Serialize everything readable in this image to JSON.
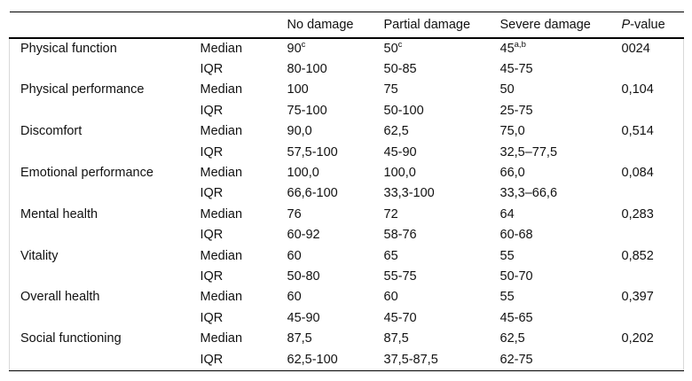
{
  "table": {
    "headers": {
      "label": "",
      "stat": "",
      "no_damage": "No damage",
      "partial_damage": "Partial damage",
      "severe_damage": "Severe damage",
      "p_value": "P-value"
    },
    "stat_labels": {
      "median": "Median",
      "iqr": "IQR"
    },
    "rows": [
      {
        "label": "Physical function",
        "median": {
          "no": "90",
          "no_sup": "c",
          "partial": "50",
          "partial_sup": "c",
          "severe": "45",
          "severe_sup": "a,b",
          "p": "0024"
        },
        "iqr": {
          "no": "80-100",
          "partial": "50-85",
          "severe": "45-75"
        }
      },
      {
        "label": "Physical performance",
        "median": {
          "no": "100",
          "partial": "75",
          "severe": "50",
          "p": "0,104"
        },
        "iqr": {
          "no": "75-100",
          "partial": "50-100",
          "severe": "25-75"
        }
      },
      {
        "label": "Discomfort",
        "median": {
          "no": "90,0",
          "partial": "62,5",
          "severe": "75,0",
          "p": "0,514"
        },
        "iqr": {
          "no": "57,5-100",
          "partial": "45-90",
          "severe": "32,5–77,5"
        }
      },
      {
        "label": "Emotional performance",
        "median": {
          "no": "100,0",
          "partial": "100,0",
          "severe": "66,0",
          "p": "0,084"
        },
        "iqr": {
          "no": "66,6-100",
          "partial": "33,3-100",
          "severe": "33,3–66,6"
        }
      },
      {
        "label": "Mental health",
        "median": {
          "no": "76",
          "partial": "72",
          "severe": "64",
          "p": "0,283"
        },
        "iqr": {
          "no": "60-92",
          "partial": "58-76",
          "severe": "60-68"
        }
      },
      {
        "label": "Vitality",
        "median": {
          "no": "60",
          "partial": "65",
          "severe": "55",
          "p": "0,852"
        },
        "iqr": {
          "no": "50-80",
          "partial": "55-75",
          "severe": "50-70"
        }
      },
      {
        "label": "Overall health",
        "median": {
          "no": "60",
          "partial": "60",
          "severe": "55",
          "p": "0,397"
        },
        "iqr": {
          "no": "45-90",
          "partial": "45-70",
          "severe": "45-65"
        }
      },
      {
        "label": "Social functioning",
        "median": {
          "no": "87,5",
          "partial": "87,5",
          "severe": "62,5",
          "p": "0,202"
        },
        "iqr": {
          "no": "62,5-100",
          "partial": "37,5-87,5",
          "severe": "62-75"
        }
      }
    ]
  }
}
